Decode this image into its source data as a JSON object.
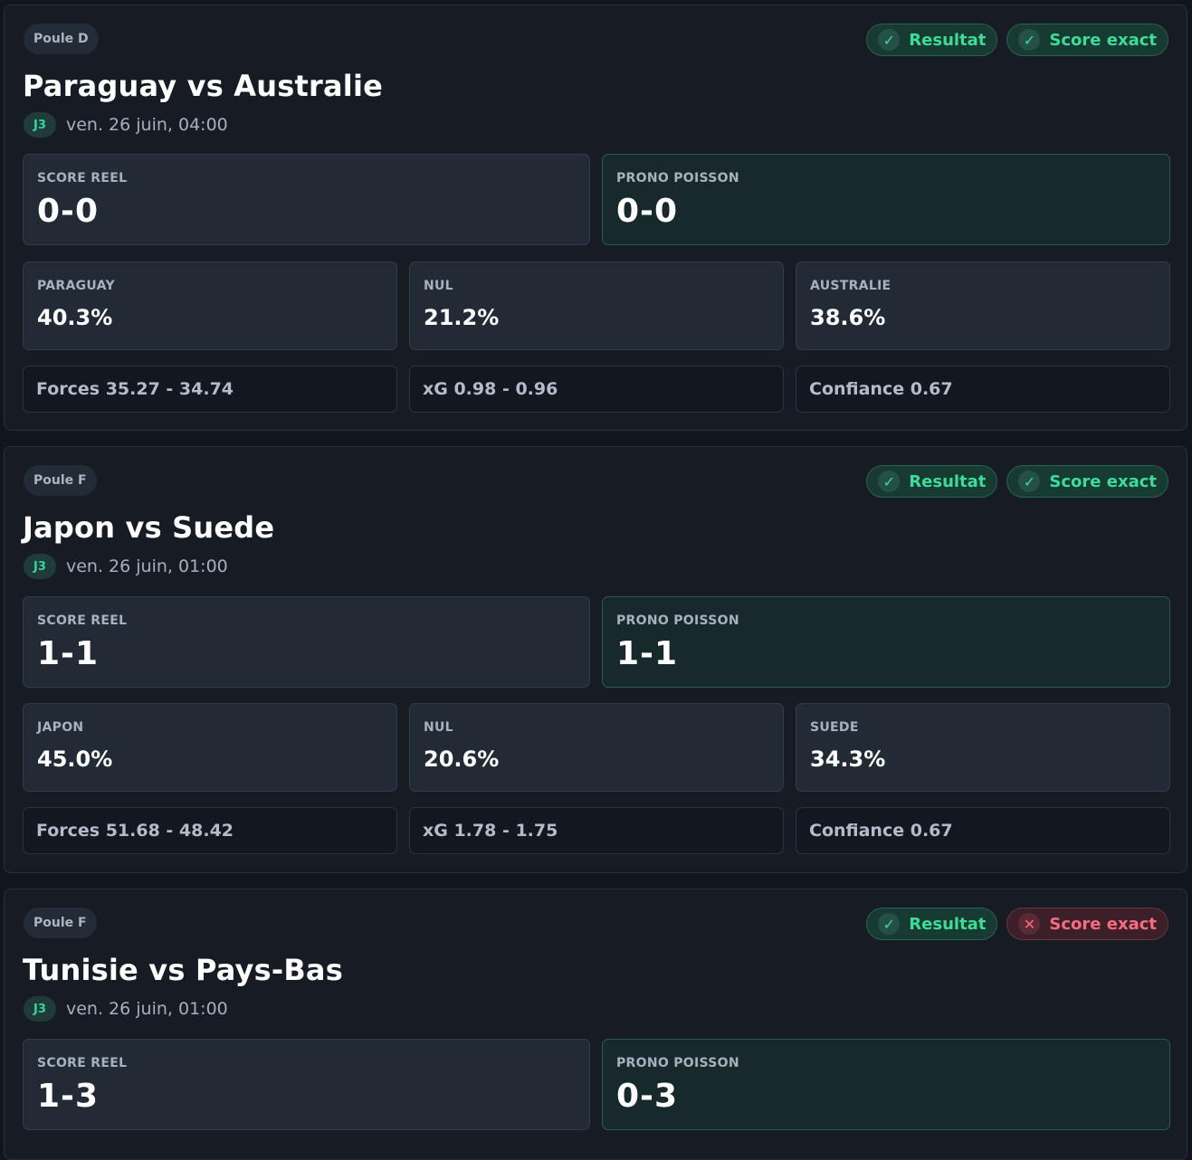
{
  "matches": [
    {
      "group": "Poule D",
      "badges": [
        {
          "label": "Resultat",
          "status": "ok",
          "icon": "check-icon",
          "glyph": "✓"
        },
        {
          "label": "Score exact",
          "status": "ok",
          "icon": "check-icon",
          "glyph": "✓"
        }
      ],
      "title": "Paraguay vs Australie",
      "round": "J3",
      "date": "ven. 26 juin, 04:00",
      "real_label": "SCORE REEL",
      "real_score": "0-0",
      "pred_label": "PRONO POISSON",
      "pred_score": "0-0",
      "probs": [
        {
          "label": "PARAGUAY",
          "value": "40.3%"
        },
        {
          "label": "NUL",
          "value": "21.2%"
        },
        {
          "label": "AUSTRALIE",
          "value": "38.6%"
        }
      ],
      "stats": [
        "Forces 35.27 - 34.74",
        "xG 0.98 - 0.96",
        "Confiance 0.67"
      ]
    },
    {
      "group": "Poule F",
      "badges": [
        {
          "label": "Resultat",
          "status": "ok",
          "icon": "check-icon",
          "glyph": "✓"
        },
        {
          "label": "Score exact",
          "status": "ok",
          "icon": "check-icon",
          "glyph": "✓"
        }
      ],
      "title": "Japon vs Suede",
      "round": "J3",
      "date": "ven. 26 juin, 01:00",
      "real_label": "SCORE REEL",
      "real_score": "1-1",
      "pred_label": "PRONO POISSON",
      "pred_score": "1-1",
      "probs": [
        {
          "label": "JAPON",
          "value": "45.0%"
        },
        {
          "label": "NUL",
          "value": "20.6%"
        },
        {
          "label": "SUEDE",
          "value": "34.3%"
        }
      ],
      "stats": [
        "Forces 51.68 - 48.42",
        "xG 1.78 - 1.75",
        "Confiance 0.67"
      ]
    },
    {
      "group": "Poule F",
      "badges": [
        {
          "label": "Resultat",
          "status": "ok",
          "icon": "check-icon",
          "glyph": "✓"
        },
        {
          "label": "Score exact",
          "status": "ko",
          "icon": "cross-icon",
          "glyph": "✕"
        }
      ],
      "title": "Tunisie vs Pays-Bas",
      "round": "J3",
      "date": "ven. 26 juin, 01:00",
      "real_label": "SCORE REEL",
      "real_score": "1-3",
      "pred_label": "PRONO POISSON",
      "pred_score": "0-3",
      "probs": [],
      "stats": []
    }
  ]
}
